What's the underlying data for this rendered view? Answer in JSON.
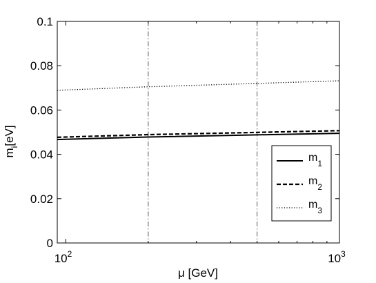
{
  "chart_data": {
    "type": "line",
    "x_scale": "log",
    "xlim": [
      93,
      1000
    ],
    "ylim": [
      0,
      0.1
    ],
    "xlabel": "μ [GeV]",
    "ylabel": {
      "main": "m",
      "sub": "i",
      "rest": "[eV]"
    },
    "x_ticks": [
      {
        "value": 100,
        "base": "10",
        "exp": "2"
      },
      {
        "value": 1000,
        "base": "10",
        "exp": "3"
      }
    ],
    "y_ticks": [
      {
        "value": 0,
        "label": "0"
      },
      {
        "value": 0.02,
        "label": "0.02"
      },
      {
        "value": 0.04,
        "label": "0.04"
      },
      {
        "value": 0.06,
        "label": "0.06"
      },
      {
        "value": 0.08,
        "label": "0.08"
      },
      {
        "value": 0.1,
        "label": "0.1"
      }
    ],
    "reference_lines_x": [
      200,
      500
    ],
    "grid": false,
    "legend_position": "bottom-right",
    "series": [
      {
        "name": "m",
        "sub": "1",
        "style": "solid",
        "x": [
          93,
          200,
          500,
          1000
        ],
        "y": [
          0.0467,
          0.0478,
          0.0488,
          0.0495
        ]
      },
      {
        "name": "m",
        "sub": "2",
        "style": "dashed",
        "x": [
          93,
          200,
          500,
          1000
        ],
        "y": [
          0.0477,
          0.0489,
          0.0499,
          0.0507
        ]
      },
      {
        "name": "m",
        "sub": "3",
        "style": "dotted",
        "x": [
          93,
          200,
          500,
          1000
        ],
        "y": [
          0.0689,
          0.0705,
          0.072,
          0.0732
        ]
      }
    ]
  }
}
